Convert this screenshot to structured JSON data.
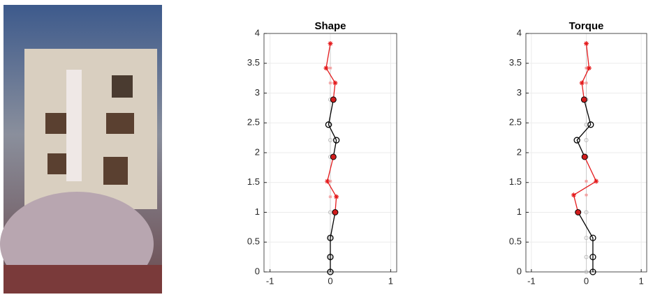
{
  "chart_data": [
    {
      "type": "line",
      "title": "Shape",
      "y": [
        0,
        0.25,
        0.57,
        1.0,
        1.26,
        1.52,
        1.93,
        2.21,
        2.47,
        2.89,
        3.17,
        3.42,
        3.83
      ],
      "x": [
        0,
        0,
        0,
        0.08,
        0.1,
        -0.05,
        0.05,
        0.1,
        -0.03,
        0.05,
        0.08,
        -0.07,
        0
      ],
      "markers": [
        "o",
        "o",
        "o",
        "filled",
        "*",
        "*",
        "filled",
        "o",
        "o",
        "filled",
        "*",
        "*",
        "*"
      ],
      "line_colors": [
        "#000000",
        "#000000",
        "#000000",
        "#e41a1c",
        "#e41a1c",
        "#e41a1c",
        "#000000",
        "#000000",
        "#000000",
        "#e41a1c",
        "#e41a1c",
        "#e41a1c"
      ],
      "xlim": [
        -1.1,
        1.1
      ],
      "ylim": [
        0,
        4
      ],
      "xticks": [
        -1,
        0,
        1
      ],
      "yticks": [
        0,
        0.5,
        1,
        1.5,
        2,
        2.5,
        3,
        3.5,
        4
      ],
      "grid": true
    },
    {
      "type": "line",
      "title": "Torque",
      "y": [
        0,
        0.25,
        0.57,
        1.0,
        1.29,
        1.52,
        1.93,
        2.21,
        2.47,
        2.89,
        3.17,
        3.42,
        3.83
      ],
      "x": [
        0.12,
        0.12,
        0.12,
        -0.15,
        -0.23,
        0.18,
        -0.03,
        -0.17,
        0.08,
        -0.04,
        -0.08,
        0.05,
        0
      ],
      "markers": [
        "o",
        "o",
        "o",
        "filled",
        "*",
        "*",
        "filled",
        "o",
        "o",
        "filled",
        "*",
        "*",
        "*"
      ],
      "line_colors": [
        "#000000",
        "#000000",
        "#000000",
        "#e41a1c",
        "#e41a1c",
        "#e41a1c",
        "#000000",
        "#000000",
        "#000000",
        "#e41a1c",
        "#e41a1c",
        "#e41a1c"
      ],
      "xlim": [
        -1.1,
        1.1
      ],
      "ylim": [
        0,
        4
      ],
      "xticks": [
        -1,
        0,
        1
      ],
      "yticks": [
        0,
        0.5,
        1,
        1.5,
        2,
        2.5,
        3,
        3.5,
        4
      ],
      "grid": true
    }
  ]
}
